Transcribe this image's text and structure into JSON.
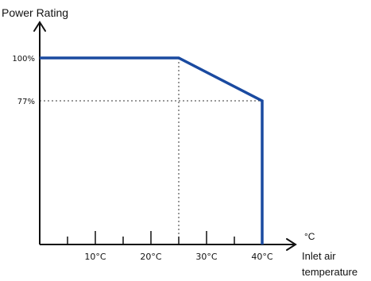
{
  "chart_data": {
    "type": "line",
    "ylabel": "Power Rating",
    "xlabel_line1": "Inlet air",
    "xlabel_line2": "temperature",
    "x_unit": "°C",
    "x_ticks": [
      {
        "value": 10,
        "label": "10°C"
      },
      {
        "value": 20,
        "label": "20°C"
      },
      {
        "value": 30,
        "label": "30°C"
      },
      {
        "value": 40,
        "label": "40°C"
      }
    ],
    "minor_x_ticks": [
      5,
      15,
      25,
      35
    ],
    "y_ticks": [
      {
        "value": 100,
        "label": "100%"
      },
      {
        "value": 77,
        "label": "77%"
      }
    ],
    "xlim": [
      0,
      46
    ],
    "ylim": [
      0,
      120
    ],
    "series": [
      {
        "values": [
          {
            "x": 0,
            "y": 100
          },
          {
            "x": 25,
            "y": 100
          },
          {
            "x": 40,
            "y": 77
          },
          {
            "x": 40,
            "y": 0
          }
        ]
      }
    ],
    "guides": [
      {
        "type": "vertical",
        "x": 25,
        "y": 100
      },
      {
        "type": "horizontal",
        "x": 40,
        "y": 77
      }
    ],
    "colors": {
      "series": "#1a4aa0",
      "axis": "#111111",
      "guide": "#333333"
    },
    "grid": false
  }
}
